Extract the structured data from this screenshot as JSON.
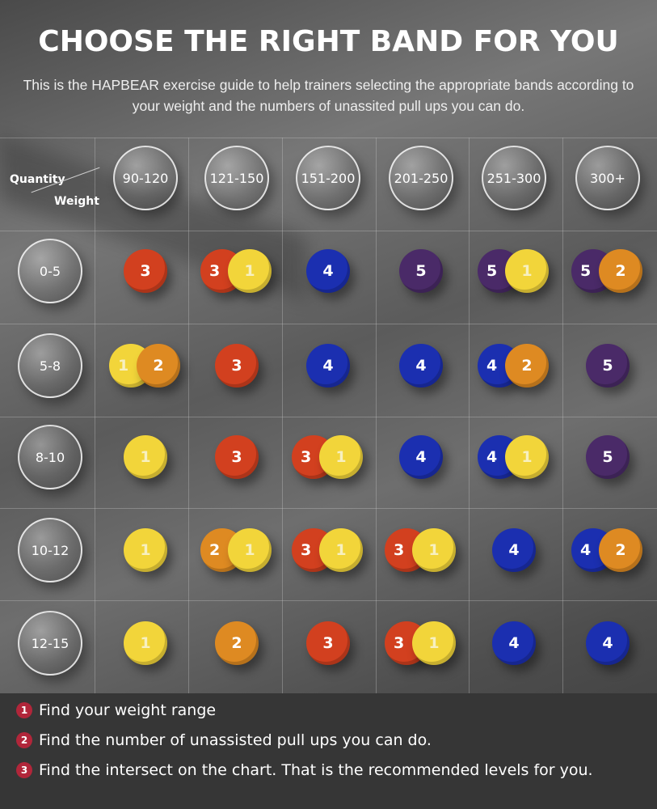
{
  "title": "CHOOSE THE RIGHT BAND FOR YOU",
  "subtitle": "This is the HAPBEAR exercise guide to help trainers selecting the appropriate bands according to your weight and the numbers of unassited pull ups you can do.",
  "corner": {
    "quantity": "Quantity",
    "weight": "Weight"
  },
  "weights": [
    "90-120",
    "121-150",
    "151-200",
    "201-250",
    "251-300",
    "300+"
  ],
  "quantities": [
    "0-5",
    "5-8",
    "8-10",
    "10-12",
    "12-15"
  ],
  "band_colors": {
    "1": "#f2d53a",
    "2": "#de8a22",
    "3": "#d2401f",
    "4": "#1b2fb0",
    "5": "#4a2a68"
  },
  "grid": [
    [
      [
        "3"
      ],
      [
        "3",
        "1"
      ],
      [
        "4"
      ],
      [
        "5"
      ],
      [
        "5",
        "1"
      ],
      [
        "5",
        "2"
      ]
    ],
    [
      [
        "1",
        "2"
      ],
      [
        "3"
      ],
      [
        "4"
      ],
      [
        "4"
      ],
      [
        "4",
        "2"
      ],
      [
        "5"
      ]
    ],
    [
      [
        "1"
      ],
      [
        "3"
      ],
      [
        "3",
        "1"
      ],
      [
        "4"
      ],
      [
        "4",
        "1"
      ],
      [
        "5"
      ]
    ],
    [
      [
        "1"
      ],
      [
        "2",
        "1"
      ],
      [
        "3",
        "1"
      ],
      [
        "3",
        "1"
      ],
      [
        "4"
      ],
      [
        "4",
        "2"
      ]
    ],
    [
      [
        "1"
      ],
      [
        "2"
      ],
      [
        "3"
      ],
      [
        "3",
        "1"
      ],
      [
        "4"
      ],
      [
        "4"
      ]
    ]
  ],
  "steps": [
    {
      "n": "1",
      "text": "Find your weight range"
    },
    {
      "n": "2",
      "text": "Find the number of unassisted pull ups you can do."
    },
    {
      "n": "3",
      "text": "Find the intersect on the chart. That is the recommended levels for you."
    }
  ]
}
